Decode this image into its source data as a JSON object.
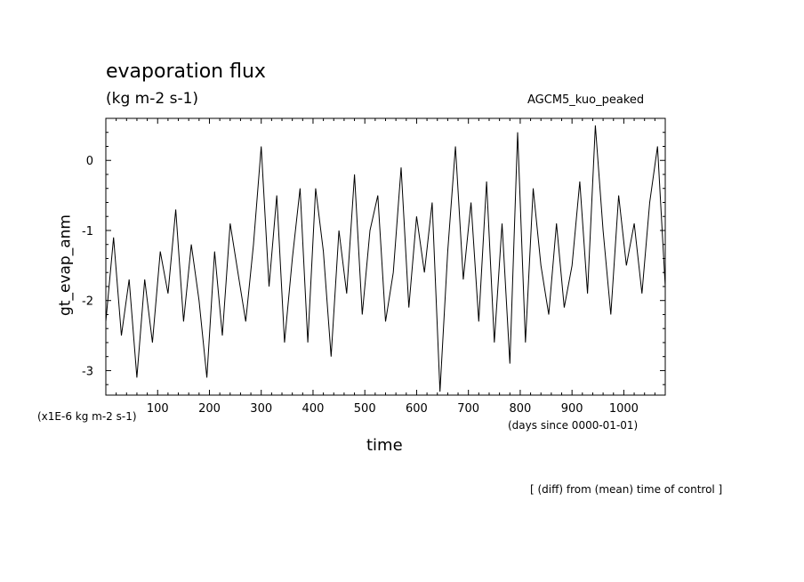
{
  "chart_data": {
    "type": "line",
    "title": "evaporation flux",
    "units_label": "(kg m-2 s-1)",
    "run_label": "AGCM5_kuo_peaked",
    "ylabel": "gt_evap_anm",
    "xlabel": "time",
    "y_scale_label": "(x1E-6 kg m-2 s-1)",
    "x_units_label": "(days since 0000-01-01)",
    "footnote": "[ (diff) from (mean) time of control ]",
    "xlim": [
      0,
      1080
    ],
    "ylim": [
      -3.35,
      0.6
    ],
    "x_ticks": [
      100,
      200,
      300,
      400,
      500,
      600,
      700,
      800,
      900,
      1000
    ],
    "x_tick_labels": [
      "100",
      "200",
      "300",
      "400",
      "500",
      "600",
      "700",
      "800",
      "900",
      "1000"
    ],
    "y_ticks": [
      -3,
      -2,
      -1,
      0
    ],
    "y_tick_labels": [
      "-3",
      "-2",
      "-1",
      "0"
    ],
    "line_color": "#000000",
    "series": [
      {
        "x": [
          0,
          15,
          30,
          45,
          60,
          75,
          90,
          105,
          120,
          135,
          150,
          165,
          180,
          195,
          210,
          225,
          240,
          255,
          270,
          285,
          300,
          315,
          330,
          345,
          360,
          375,
          390,
          405,
          420,
          435,
          450,
          465,
          480,
          495,
          510,
          525,
          540,
          555,
          570,
          585,
          600,
          615,
          630,
          645,
          660,
          675,
          690,
          705,
          720,
          735,
          750,
          765,
          780,
          795,
          810,
          825,
          840,
          855,
          870,
          885,
          900,
          915,
          930,
          945,
          960,
          975,
          990,
          1005,
          1020,
          1035,
          1050,
          1065,
          1080
        ],
        "values": [
          -2.3,
          -1.1,
          -2.5,
          -1.7,
          -3.1,
          -1.7,
          -2.6,
          -1.3,
          -1.9,
          -0.7,
          -2.3,
          -1.2,
          -2.0,
          -3.1,
          -1.3,
          -2.5,
          -0.9,
          -1.6,
          -2.3,
          -1.2,
          0.2,
          -1.8,
          -0.5,
          -2.6,
          -1.4,
          -0.4,
          -2.6,
          -0.4,
          -1.3,
          -2.8,
          -1.0,
          -1.9,
          -0.2,
          -2.2,
          -1.0,
          -0.5,
          -2.3,
          -1.6,
          -0.1,
          -2.1,
          -0.8,
          -1.6,
          -0.6,
          -3.3,
          -1.3,
          0.2,
          -1.7,
          -0.6,
          -2.3,
          -0.3,
          -2.6,
          -0.9,
          -2.9,
          0.4,
          -2.6,
          -0.4,
          -1.5,
          -2.2,
          -0.9,
          -2.1,
          -1.5,
          -0.3,
          -1.9,
          0.5,
          -1.0,
          -2.2,
          -0.5,
          -1.5,
          -0.9,
          -1.9,
          -0.6,
          0.2,
          -1.8
        ]
      }
    ]
  }
}
